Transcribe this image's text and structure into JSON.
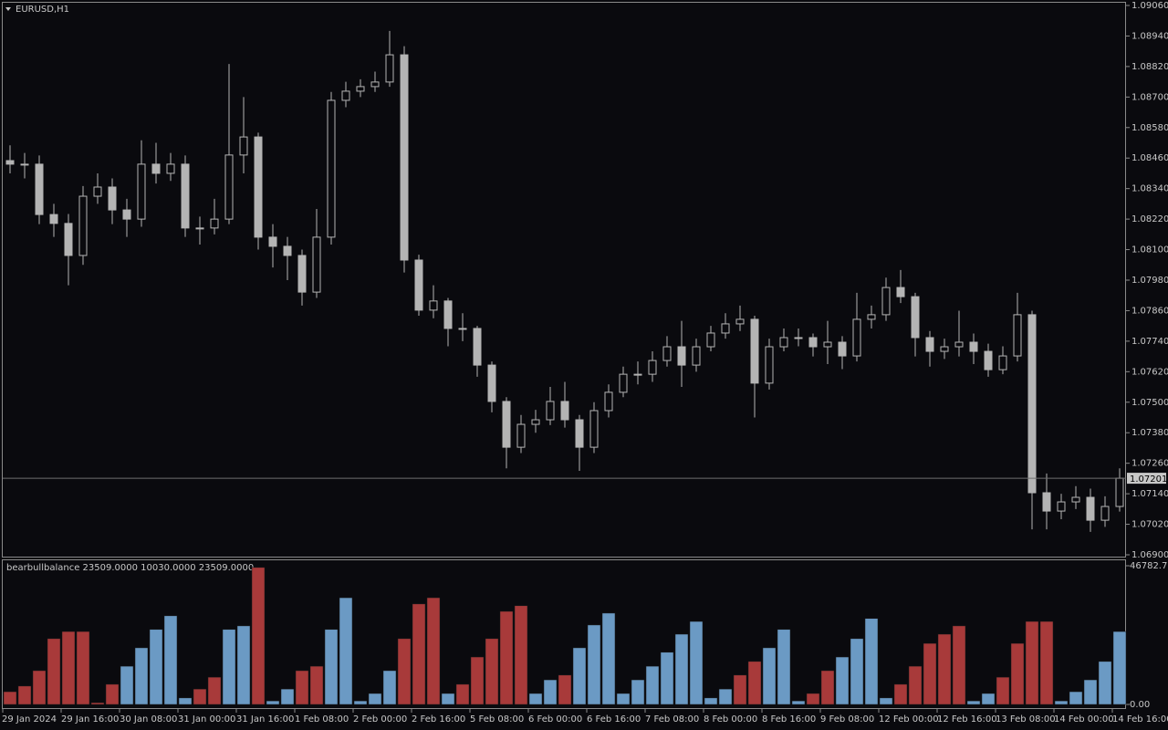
{
  "chart_data": [
    {
      "type": "candlestick",
      "title": "EURUSD,H1",
      "color": "#b4b4b4",
      "line_color": "#6e6e6e",
      "categories": [
        "29 Jan 2024",
        null,
        null,
        null,
        "29 Jan 16:00",
        null,
        null,
        null,
        "30 Jan 08:00",
        null,
        null,
        null,
        "31 Jan 00:00",
        null,
        null,
        null,
        "31 Jan 16:00",
        null,
        null,
        null,
        "1 Feb 08:00",
        null,
        null,
        null,
        "2 Feb 00:00",
        null,
        null,
        null,
        "2 Feb 16:00",
        null,
        null,
        null,
        "5 Feb 08:00",
        null,
        null,
        null,
        "6 Feb 00:00",
        null,
        null,
        null,
        "6 Feb 16:00",
        null,
        null,
        null,
        "7 Feb 08:00",
        null,
        null,
        null,
        "8 Feb 00:00",
        null,
        null,
        null,
        "8 Feb 16:00",
        null,
        null,
        null,
        "9 Feb 08:00",
        null,
        null,
        null,
        "12 Feb 00:00",
        null,
        null,
        null,
        "12 Feb 16:00",
        null,
        null,
        null,
        "13 Feb 08:00",
        null,
        null,
        null,
        "14 Feb 00:00",
        null,
        null,
        null,
        "14 Feb 16:00"
      ],
      "open": [
        1.0845,
        1.08436,
        1.08436,
        1.08238,
        1.08203,
        1.08077,
        1.0831,
        1.08346,
        1.08256,
        1.0822,
        1.08436,
        1.084,
        1.08436,
        1.08185,
        1.08185,
        1.0822,
        1.08472,
        1.08543,
        1.08149,
        1.08113,
        1.08077,
        1.07933,
        1.08149,
        1.08687,
        1.08723,
        1.08741,
        1.08759,
        1.08866,
        1.08059,
        1.07862,
        1.07898,
        1.0779,
        1.0779,
        1.07646,
        1.07503,
        1.07323,
        1.07413,
        1.07431,
        1.07503,
        1.07431,
        1.07323,
        1.07467,
        1.07539,
        1.0761,
        1.0761,
        1.07664,
        1.07718,
        1.07646,
        1.07718,
        1.07772,
        1.07808,
        1.07826,
        1.07575,
        1.07718,
        1.07754,
        1.07754,
        1.07718,
        1.07736,
        1.07682,
        1.07826,
        1.07844,
        1.07951,
        1.07915,
        1.07754,
        1.077,
        1.07718,
        1.07736,
        1.077,
        1.07628,
        1.07682,
        1.07844,
        1.07144,
        1.07072,
        1.07108,
        1.07126,
        1.07036,
        1.0709
      ],
      "high": [
        1.0851,
        1.0848,
        1.0847,
        1.0828,
        1.0824,
        1.0835,
        1.084,
        1.0838,
        1.083,
        1.0853,
        1.0852,
        1.0848,
        1.0847,
        1.0823,
        1.083,
        1.0883,
        1.087,
        1.0856,
        1.082,
        1.0815,
        1.081,
        1.0826,
        1.0872,
        1.0876,
        1.0877,
        1.088,
        1.0896,
        1.089,
        1.0808,
        1.0796,
        1.0791,
        1.0785,
        1.078,
        1.0766,
        1.0752,
        1.0745,
        1.0747,
        1.0756,
        1.0758,
        1.0745,
        1.075,
        1.0757,
        1.0764,
        1.0766,
        1.077,
        1.0776,
        1.0782,
        1.0775,
        1.078,
        1.0785,
        1.0788,
        1.0784,
        1.0775,
        1.0779,
        1.0779,
        1.0777,
        1.0782,
        1.0776,
        1.0793,
        1.0788,
        1.0799,
        1.0802,
        1.0793,
        1.0778,
        1.0775,
        1.0786,
        1.0777,
        1.0773,
        1.0772,
        1.0793,
        1.0786,
        1.0722,
        1.0714,
        1.0717,
        1.0716,
        1.0713,
        1.0724
      ],
      "low": [
        1.084,
        1.0838,
        1.082,
        1.0815,
        1.0796,
        1.0804,
        1.0828,
        1.082,
        1.0815,
        1.0819,
        1.0836,
        1.0837,
        1.0815,
        1.0812,
        1.0816,
        1.082,
        1.084,
        1.081,
        1.0803,
        1.0798,
        1.0788,
        1.0791,
        1.0812,
        1.0866,
        1.087,
        1.0872,
        1.0874,
        1.0801,
        1.0784,
        1.0783,
        1.0772,
        1.0774,
        1.076,
        1.0746,
        1.0724,
        1.073,
        1.0738,
        1.0741,
        1.074,
        1.0723,
        1.073,
        1.0744,
        1.0752,
        1.0757,
        1.0758,
        1.0764,
        1.0756,
        1.0762,
        1.077,
        1.0775,
        1.0778,
        1.0744,
        1.0755,
        1.077,
        1.0772,
        1.0768,
        1.0765,
        1.0763,
        1.0766,
        1.0779,
        1.0782,
        1.0789,
        1.0768,
        1.0764,
        1.0767,
        1.0768,
        1.0765,
        1.076,
        1.0761,
        1.0766,
        1.07,
        1.07,
        1.0704,
        1.0708,
        1.0699,
        1.0701,
        1.0707
      ],
      "close": [
        1.08436,
        1.08436,
        1.08238,
        1.08203,
        1.08077,
        1.0831,
        1.08346,
        1.08256,
        1.0822,
        1.08436,
        1.084,
        1.08436,
        1.08185,
        1.08185,
        1.0822,
        1.08472,
        1.08543,
        1.08149,
        1.08113,
        1.08077,
        1.07933,
        1.08149,
        1.08687,
        1.08723,
        1.08741,
        1.08759,
        1.08866,
        1.08059,
        1.07862,
        1.07898,
        1.0779,
        1.0779,
        1.07646,
        1.07503,
        1.07323,
        1.07413,
        1.07431,
        1.07503,
        1.07431,
        1.07323,
        1.07467,
        1.07539,
        1.0761,
        1.0761,
        1.07664,
        1.07718,
        1.07646,
        1.07718,
        1.07772,
        1.07808,
        1.07826,
        1.07575,
        1.07718,
        1.07754,
        1.07754,
        1.07718,
        1.07736,
        1.07682,
        1.07826,
        1.07844,
        1.07951,
        1.07915,
        1.07754,
        1.077,
        1.07718,
        1.07736,
        1.077,
        1.07628,
        1.07682,
        1.07844,
        1.07144,
        1.07072,
        1.07108,
        1.07126,
        1.07036,
        1.0709,
        1.07201
      ],
      "last_price": 1.07201,
      "ylim": [
        1.069,
        1.0906
      ],
      "yticks": [
        {
          "value": 1.0906,
          "label": "1.09060"
        },
        {
          "value": 1.0894,
          "label": "1.08940"
        },
        {
          "value": 1.0882,
          "label": "1.08820"
        },
        {
          "value": 1.087,
          "label": "1.08700"
        },
        {
          "value": 1.0858,
          "label": "1.08580"
        },
        {
          "value": 1.0846,
          "label": "1.08460"
        },
        {
          "value": 1.0834,
          "label": "1.08340"
        },
        {
          "value": 1.0822,
          "label": "1.08220"
        },
        {
          "value": 1.081,
          "label": "1.08100"
        },
        {
          "value": 1.0798,
          "label": "1.07980"
        },
        {
          "value": 1.0786,
          "label": "1.07860"
        },
        {
          "value": 1.0774,
          "label": "1.07740"
        },
        {
          "value": 1.0762,
          "label": "1.07620"
        },
        {
          "value": 1.075,
          "label": "1.07500"
        },
        {
          "value": 1.0738,
          "label": "1.07380"
        },
        {
          "value": 1.0726,
          "label": "1.07260"
        },
        {
          "value": 1.0714,
          "label": "1.07140"
        },
        {
          "value": 1.0702,
          "label": "1.07020"
        },
        {
          "value": 1.069,
          "label": "1.06900"
        }
      ]
    },
    {
      "type": "bar",
      "title": "bearbullbalance 23509.0000 10030.0000 23509.0000",
      "series": [
        {
          "color": "#a83a3a",
          "values": [
            4300,
            6200,
            11400,
            22200,
            24600,
            24600,
            600,
            6800,
            null,
            null,
            null,
            null,
            null,
            5200,
            9200,
            null,
            null,
            46200,
            null,
            null,
            11400,
            12900,
            null,
            null,
            null,
            null,
            null,
            22200,
            33900,
            36000,
            null,
            6800,
            16000,
            22200,
            31400,
            33300,
            null,
            null,
            9900,
            null,
            null,
            null,
            null,
            null,
            null,
            null,
            null,
            null,
            null,
            null,
            9900,
            14500,
            null,
            null,
            null,
            3700,
            11400,
            null,
            null,
            null,
            null,
            6800,
            12900,
            20600,
            23700,
            26500,
            null,
            null,
            9200,
            20600,
            28000,
            28000,
            null,
            null,
            null,
            null,
            null
          ]
        },
        {
          "color": "#6b9ac4",
          "values": [
            null,
            null,
            null,
            null,
            null,
            null,
            null,
            null,
            12900,
            19100,
            25300,
            29900,
            2200,
            null,
            null,
            25300,
            26500,
            null,
            1200,
            5200,
            null,
            null,
            25300,
            36000,
            1200,
            3700,
            11400,
            null,
            null,
            null,
            3700,
            null,
            null,
            null,
            null,
            null,
            3700,
            8300,
            null,
            19100,
            26800,
            30800,
            3700,
            8300,
            12900,
            17600,
            23700,
            28000,
            2200,
            5200,
            null,
            null,
            19100,
            25300,
            1200,
            null,
            null,
            16000,
            22200,
            29000,
            2200,
            null,
            null,
            null,
            null,
            null,
            1200,
            3700,
            null,
            null,
            null,
            null,
            1200,
            4300,
            8300,
            14500,
            24600
          ]
        }
      ],
      "ylim": [
        0,
        46782.75
      ],
      "yticks": [
        {
          "value": 0,
          "label": "0.00"
        },
        46782.75
      ]
    }
  ]
}
